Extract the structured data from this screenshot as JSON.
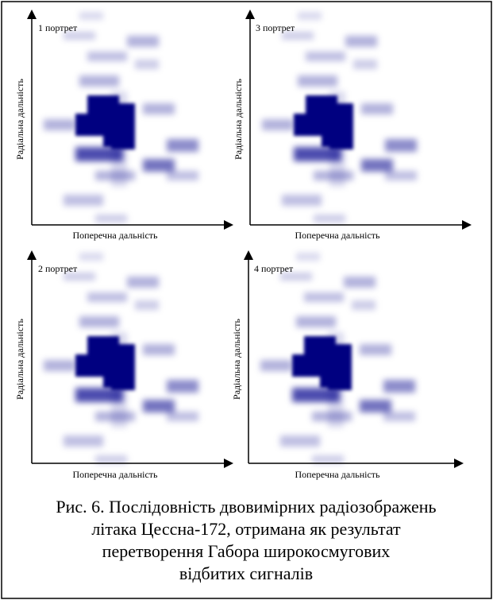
{
  "panels": [
    {
      "label": "1 портрет",
      "x_axis_label": "Поперечна дальність",
      "y_axis_label": "Радіальна дальність"
    },
    {
      "label": "3 портрет",
      "x_axis_label": "Поперечна дальність",
      "y_axis_label": "Радіальна дальність"
    },
    {
      "label": "2 портрет",
      "x_axis_label": "Поперечна дальність",
      "y_axis_label": "Радіальна дальність"
    },
    {
      "label": "4 портрет",
      "x_axis_label": "Поперечна дальність",
      "y_axis_label": "Радіальна дальність"
    }
  ],
  "caption": {
    "lines": [
      "Рис. 6. Послідовність двовимірних радіозображень",
      "літака Цессна-172, отримана як результат",
      "перетворення Габора широкосмугових",
      "відбитих сигналів"
    ]
  }
}
